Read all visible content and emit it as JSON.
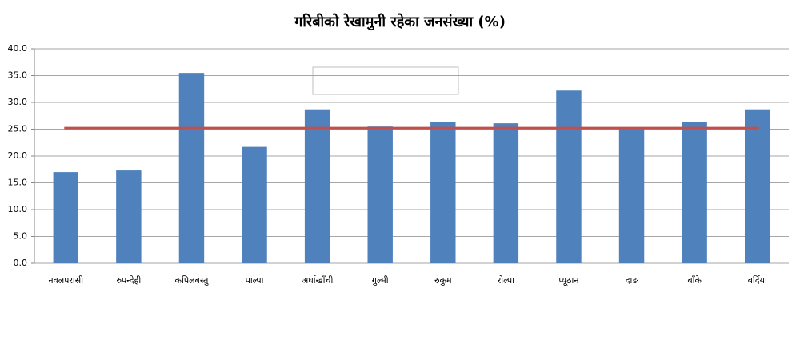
{
  "chart_data": {
    "type": "bar",
    "title": "गरिबीको रेखामुनी रहेका जनसंख्या (%)",
    "categories": [
      "नवलपरासी",
      "रुपन्देही",
      "कपिलबस्तु",
      "पाल्पा",
      "अर्घाखाँची",
      "गुल्मी",
      "रुकुम",
      "रोल्पा",
      "प्यूठान",
      "दाङ",
      "बाँके",
      "बर्दिया"
    ],
    "values": [
      17.0,
      17.3,
      35.5,
      21.7,
      28.7,
      25.5,
      26.3,
      26.1,
      32.2,
      25.2,
      26.4,
      28.7
    ],
    "color": "#4f81bd",
    "reference_line": {
      "value": 25.2,
      "color": "#c0504d"
    },
    "ylim": [
      0,
      40
    ],
    "yticks": [
      {
        "value": 0,
        "label": "0.0"
      },
      {
        "value": 5,
        "label": "5.0"
      },
      {
        "value": 10,
        "label": "10.0"
      },
      {
        "value": 15,
        "label": "15.0"
      },
      {
        "value": 20,
        "label": "20.0"
      },
      {
        "value": 25,
        "label": "25.0"
      },
      {
        "value": 30,
        "label": "30.0"
      },
      {
        "value": 35,
        "label": "35.0"
      },
      {
        "value": 40,
        "label": "40.0"
      }
    ],
    "grid": true
  }
}
